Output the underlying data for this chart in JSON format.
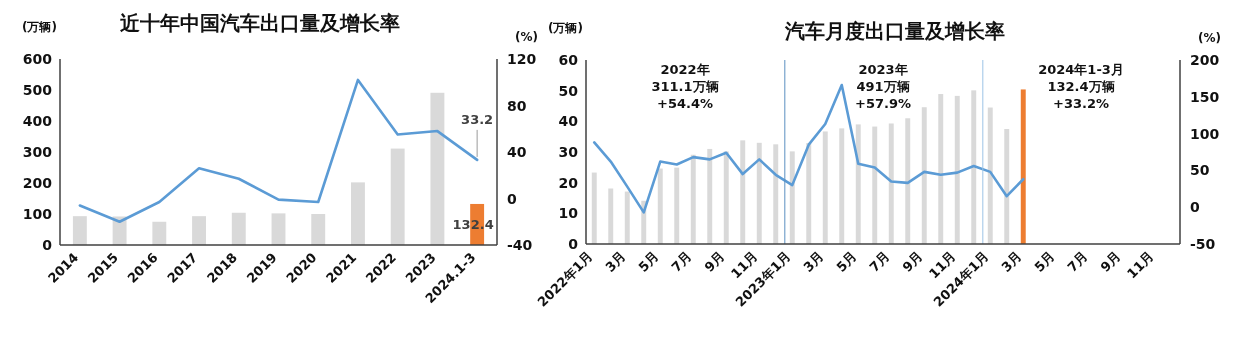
{
  "chart_data": [
    {
      "type": "bar",
      "title": "近十年中国汽车出口量及增长率",
      "ylabel": "(万辆)",
      "y2label": "(%)",
      "categories": [
        "2014",
        "2015",
        "2016",
        "2017",
        "2018",
        "2019",
        "2020",
        "2021",
        "2022",
        "2023",
        "2024.1-3"
      ],
      "ylim": [
        0,
        600
      ],
      "yticks": [
        0,
        100,
        200,
        300,
        400,
        500,
        600
      ],
      "y2lim": [
        -40,
        120
      ],
      "y2ticks": [
        -40,
        0,
        40,
        80,
        120
      ],
      "series": [
        {
          "values": [
            93,
            92,
            75,
            93,
            104,
            102,
            100,
            202,
            311,
            491,
            132.4
          ],
          "colors": [
            "#d9d9d9",
            "#d9d9d9",
            "#d9d9d9",
            "#d9d9d9",
            "#d9d9d9",
            "#d9d9d9",
            "#d9d9d9",
            "#d9d9d9",
            "#d9d9d9",
            "#d9d9d9",
            "#ed7d31"
          ],
          "value_labels": [
            null,
            null,
            null,
            null,
            null,
            null,
            null,
            null,
            null,
            null,
            "132.4"
          ]
        },
        {
          "type": "line",
          "axis": "y2",
          "color": "#5b9bd5",
          "values": [
            -6,
            -20,
            -3,
            26,
            17,
            -1,
            -3,
            102,
            55,
            58,
            33.2
          ],
          "value_labels": [
            null,
            null,
            null,
            null,
            null,
            null,
            null,
            null,
            null,
            null,
            "33.2"
          ]
        }
      ],
      "grid": false
    },
    {
      "type": "bar",
      "title": "汽车月度出口量及增长率",
      "ylabel": "(万辆)",
      "y2label": "(%)",
      "categories": [
        "2022年1月",
        null,
        "3月",
        null,
        "5月",
        null,
        "7月",
        null,
        "9月",
        null,
        "11月",
        null,
        "2023年1月",
        null,
        "3月",
        null,
        "5月",
        null,
        "7月",
        null,
        "9月",
        null,
        "11月",
        null,
        "2024年1月",
        null,
        "3月",
        null,
        "5月",
        null,
        "7月",
        null,
        "9月",
        null,
        "11月",
        null
      ],
      "ylim": [
        0,
        60
      ],
      "yticks": [
        0,
        10,
        20,
        30,
        40,
        50,
        60
      ],
      "y2lim": [
        -50,
        200
      ],
      "y2ticks": [
        -50,
        0,
        50,
        100,
        150,
        200
      ],
      "series": [
        {
          "values": [
            23.3,
            18.1,
            17.1,
            14.1,
            24.6,
            24.9,
            29.1,
            31.0,
            30.2,
            33.8,
            33.0,
            32.5,
            30.2,
            32.9,
            36.7,
            37.7,
            39.0,
            38.3,
            39.3,
            41.0,
            44.6,
            48.9,
            48.3,
            50.1,
            44.5,
            37.5,
            50.4,
            null,
            null,
            null,
            null,
            null,
            null,
            null,
            null,
            null
          ],
          "colors": [
            "#d9d9d9",
            "#d9d9d9",
            "#d9d9d9",
            "#d9d9d9",
            "#d9d9d9",
            "#d9d9d9",
            "#d9d9d9",
            "#d9d9d9",
            "#d9d9d9",
            "#d9d9d9",
            "#d9d9d9",
            "#d9d9d9",
            "#d9d9d9",
            "#d9d9d9",
            "#d9d9d9",
            "#d9d9d9",
            "#d9d9d9",
            "#d9d9d9",
            "#d9d9d9",
            "#d9d9d9",
            "#d9d9d9",
            "#d9d9d9",
            "#d9d9d9",
            "#d9d9d9",
            "#d9d9d9",
            "#d9d9d9",
            "#ed7d31",
            "#d9d9d9",
            "#d9d9d9",
            "#d9d9d9",
            "#d9d9d9",
            "#d9d9d9",
            "#d9d9d9",
            "#d9d9d9",
            "#d9d9d9",
            "#d9d9d9"
          ]
        },
        {
          "type": "line",
          "axis": "y2",
          "color": "#5b9bd5",
          "values": [
            88,
            62,
            28,
            -7,
            62,
            58,
            68,
            65,
            74,
            45,
            65,
            44,
            30,
            85,
            113,
            166,
            59,
            54,
            35,
            33,
            48,
            44,
            47,
            56,
            48,
            15,
            38,
            null,
            null,
            null,
            null,
            null,
            null,
            null,
            null,
            null
          ]
        }
      ],
      "annotations": [
        "2022年\n311.1万辆\n+54.4%",
        "2023年\n491万辆\n+57.9%",
        "2024年1-3月\n132.4万辆\n+33.2%"
      ],
      "grid": false
    }
  ]
}
